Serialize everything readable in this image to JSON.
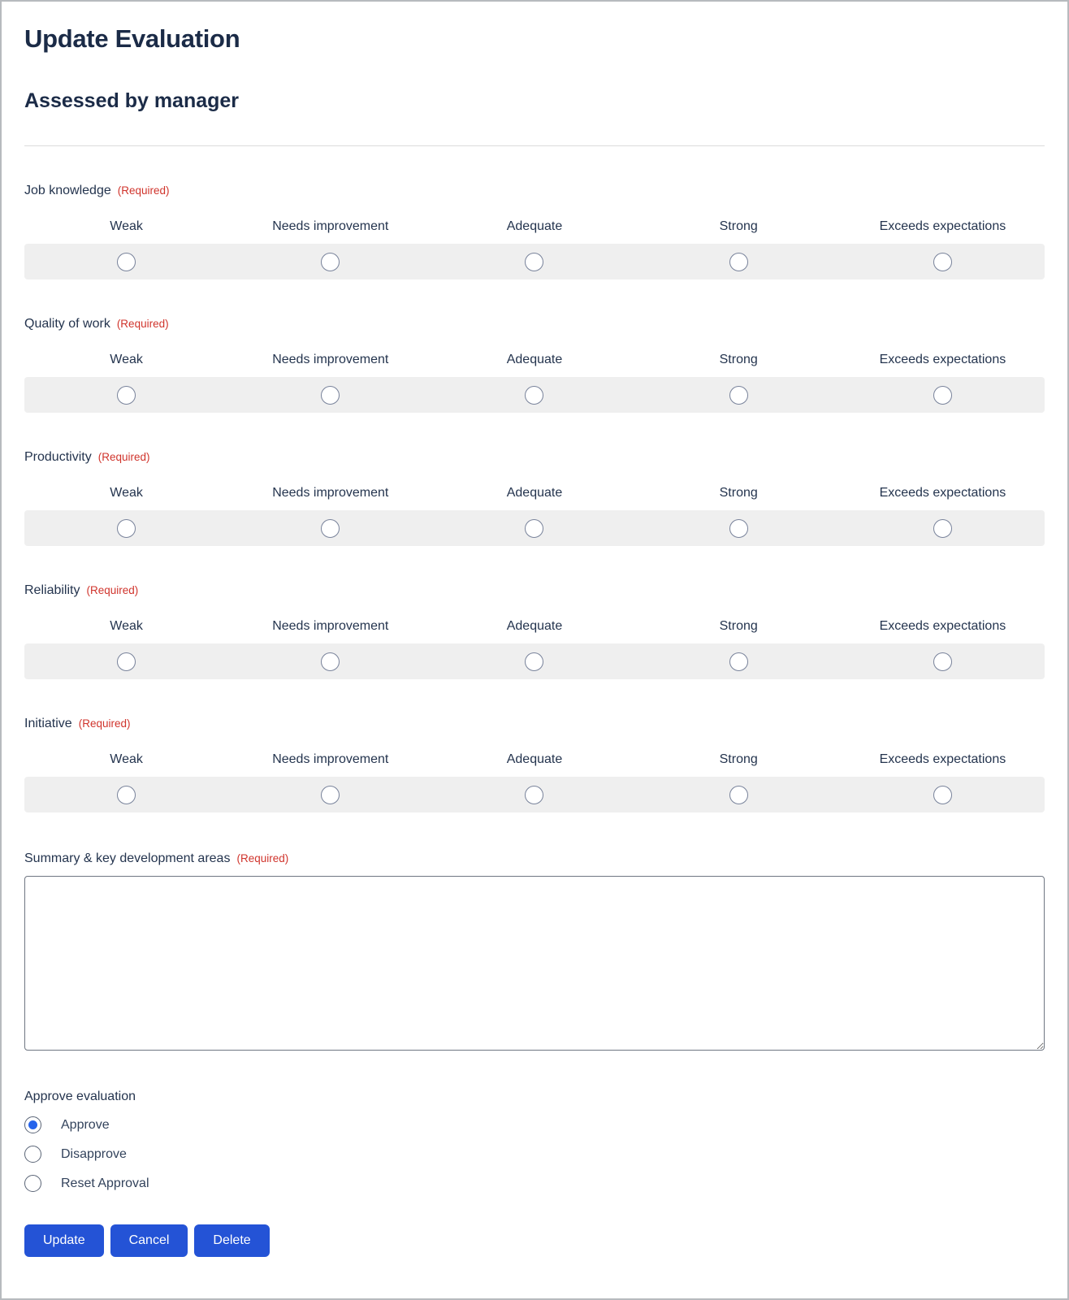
{
  "page": {
    "title": "Update Evaluation",
    "subtitle": "Assessed by manager"
  },
  "required_label": "(Required)",
  "rating_scale": [
    "Weak",
    "Needs improvement",
    "Adequate",
    "Strong",
    "Exceeds expectations"
  ],
  "rating_fields": [
    {
      "label": "Job knowledge"
    },
    {
      "label": "Quality of work"
    },
    {
      "label": "Productivity"
    },
    {
      "label": "Reliability"
    },
    {
      "label": "Initiative"
    }
  ],
  "summary": {
    "label": "Summary & key development areas",
    "value": ""
  },
  "approval": {
    "label": "Approve evaluation",
    "options": [
      {
        "label": "Approve",
        "selected": true
      },
      {
        "label": "Disapprove",
        "selected": false
      },
      {
        "label": "Reset Approval",
        "selected": false
      }
    ]
  },
  "buttons": {
    "update": "Update",
    "cancel": "Cancel",
    "delete": "Delete"
  },
  "colors": {
    "accent_blue": "#2453d6",
    "selected_radio_blue": "#2563eb",
    "required_red": "#d0342c",
    "heading_navy": "#1b2b47",
    "strip_gray": "#efefef"
  }
}
